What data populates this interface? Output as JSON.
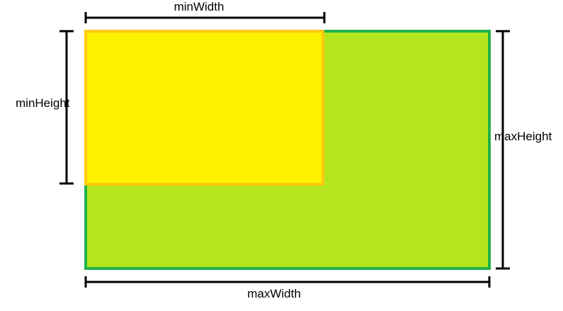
{
  "labels": {
    "min_width": "minWidth",
    "min_height": "minHeight",
    "max_width": "maxWidth",
    "max_height": "maxHeight"
  },
  "colors": {
    "outer_fill": "#b5e61d",
    "outer_border": "#22b14c",
    "inner_fill": "#fff200",
    "inner_border": "#ffc90e",
    "dimension_line": "#000000"
  }
}
